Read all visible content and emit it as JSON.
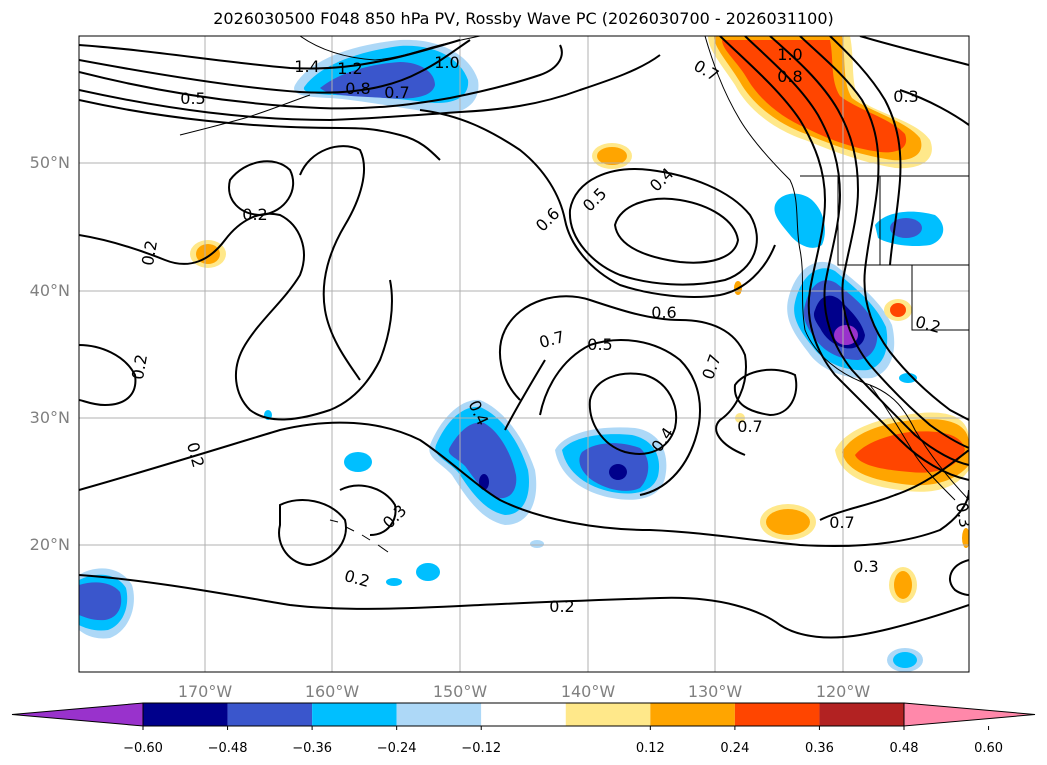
{
  "title": "2026030500 F048 850 hPa PV, Rossby Wave PC (2026030700 - 2026031100)",
  "map": {
    "lat_labels": [
      "50°N",
      "40°N",
      "30°N",
      "20°N"
    ],
    "lon_labels": [
      "170°W",
      "160°W",
      "150°W",
      "140°W",
      "130°W",
      "120°W"
    ],
    "contour_labels": [
      "1.4",
      "1.2",
      "1.0",
      "0.8",
      "0.7",
      "0.5",
      "0.2",
      "0.2",
      "0.2",
      "0.2",
      "0.6",
      "0.5",
      "0.4",
      "0.6",
      "0.7",
      "0.5",
      "0.7",
      "0.4",
      "0.4",
      "0.3",
      "0.2",
      "0.2",
      "0.7",
      "0.7",
      "0.3",
      "1.0",
      "0.8",
      "0.7",
      "0.3",
      "0.2",
      "0.3"
    ]
  },
  "colorbar": {
    "ticks": [
      "−0.60",
      "−0.48",
      "−0.36",
      "−0.24",
      "−0.12",
      "0.12",
      "0.24",
      "0.36",
      "0.48",
      "0.60"
    ],
    "colors": [
      "#9932cc",
      "#00008b",
      "#3a56cc",
      "#00bfff",
      "#add8f7",
      "#ffffff",
      "#ffe88a",
      "#ffa500",
      "#ff4500",
      "#b22222",
      "#ff88aa"
    ]
  },
  "colors": {
    "grid": "#b0b0b0",
    "contour": "#000000",
    "neg_strong": "#00008b",
    "neg_mid": "#3a56cc",
    "neg_light": "#00bfff",
    "neg_faint": "#add8f7",
    "pos_faint": "#ffe88a",
    "pos_mid": "#ffa500",
    "pos_strong": "#ff4500",
    "neg_extreme": "#9932cc"
  }
}
